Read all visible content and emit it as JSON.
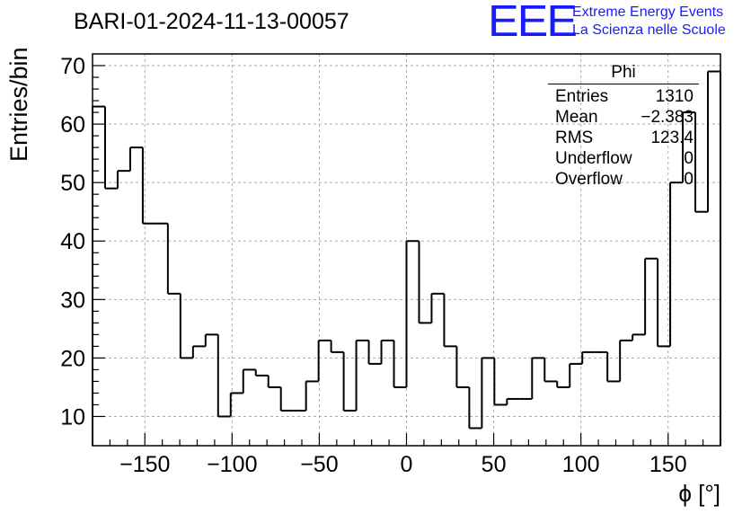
{
  "title": "BARI-01-2024-11-13-00057",
  "logo": {
    "mark": "EEE",
    "line1": "Extreme Energy Events",
    "line2": "La Scienza nelle Scuole"
  },
  "stats": {
    "name": "Phi",
    "rows": [
      {
        "label": "Entries",
        "value": "1310"
      },
      {
        "label": "Mean",
        "value": "−2.383"
      },
      {
        "label": "RMS",
        "value": "123.4"
      },
      {
        "label": "Underflow",
        "value": "0"
      },
      {
        "label": "Overflow",
        "value": "0"
      }
    ]
  },
  "chart_data": {
    "type": "bar",
    "style": "step-histogram",
    "title": "BARI-01-2024-11-13-00057",
    "xlabel": "ϕ [°]",
    "ylabel": "Entries/bin",
    "xlim": [
      -180,
      180
    ],
    "ylim": [
      5,
      72
    ],
    "grid": true,
    "bin_width": 7.2,
    "x_ticks": [
      -150,
      -100,
      -50,
      0,
      50,
      100,
      150
    ],
    "x_tick_labels": [
      "−150",
      "−100",
      "−50",
      "0",
      "50",
      "100",
      "150"
    ],
    "y_ticks": [
      10,
      20,
      30,
      40,
      50,
      60,
      70
    ],
    "y_tick_labels": [
      "10",
      "20",
      "30",
      "40",
      "50",
      "60",
      "70"
    ],
    "values": [
      63,
      49,
      52,
      56,
      43,
      43,
      31,
      20,
      22,
      24,
      10,
      14,
      18,
      17,
      15,
      11,
      11,
      16,
      23,
      21,
      11,
      23,
      19,
      23,
      15,
      40,
      26,
      31,
      22,
      15,
      8,
      20,
      12,
      13,
      13,
      20,
      16,
      15,
      19,
      21,
      21,
      16,
      23,
      24,
      37,
      22,
      50,
      62,
      45,
      69
    ]
  }
}
